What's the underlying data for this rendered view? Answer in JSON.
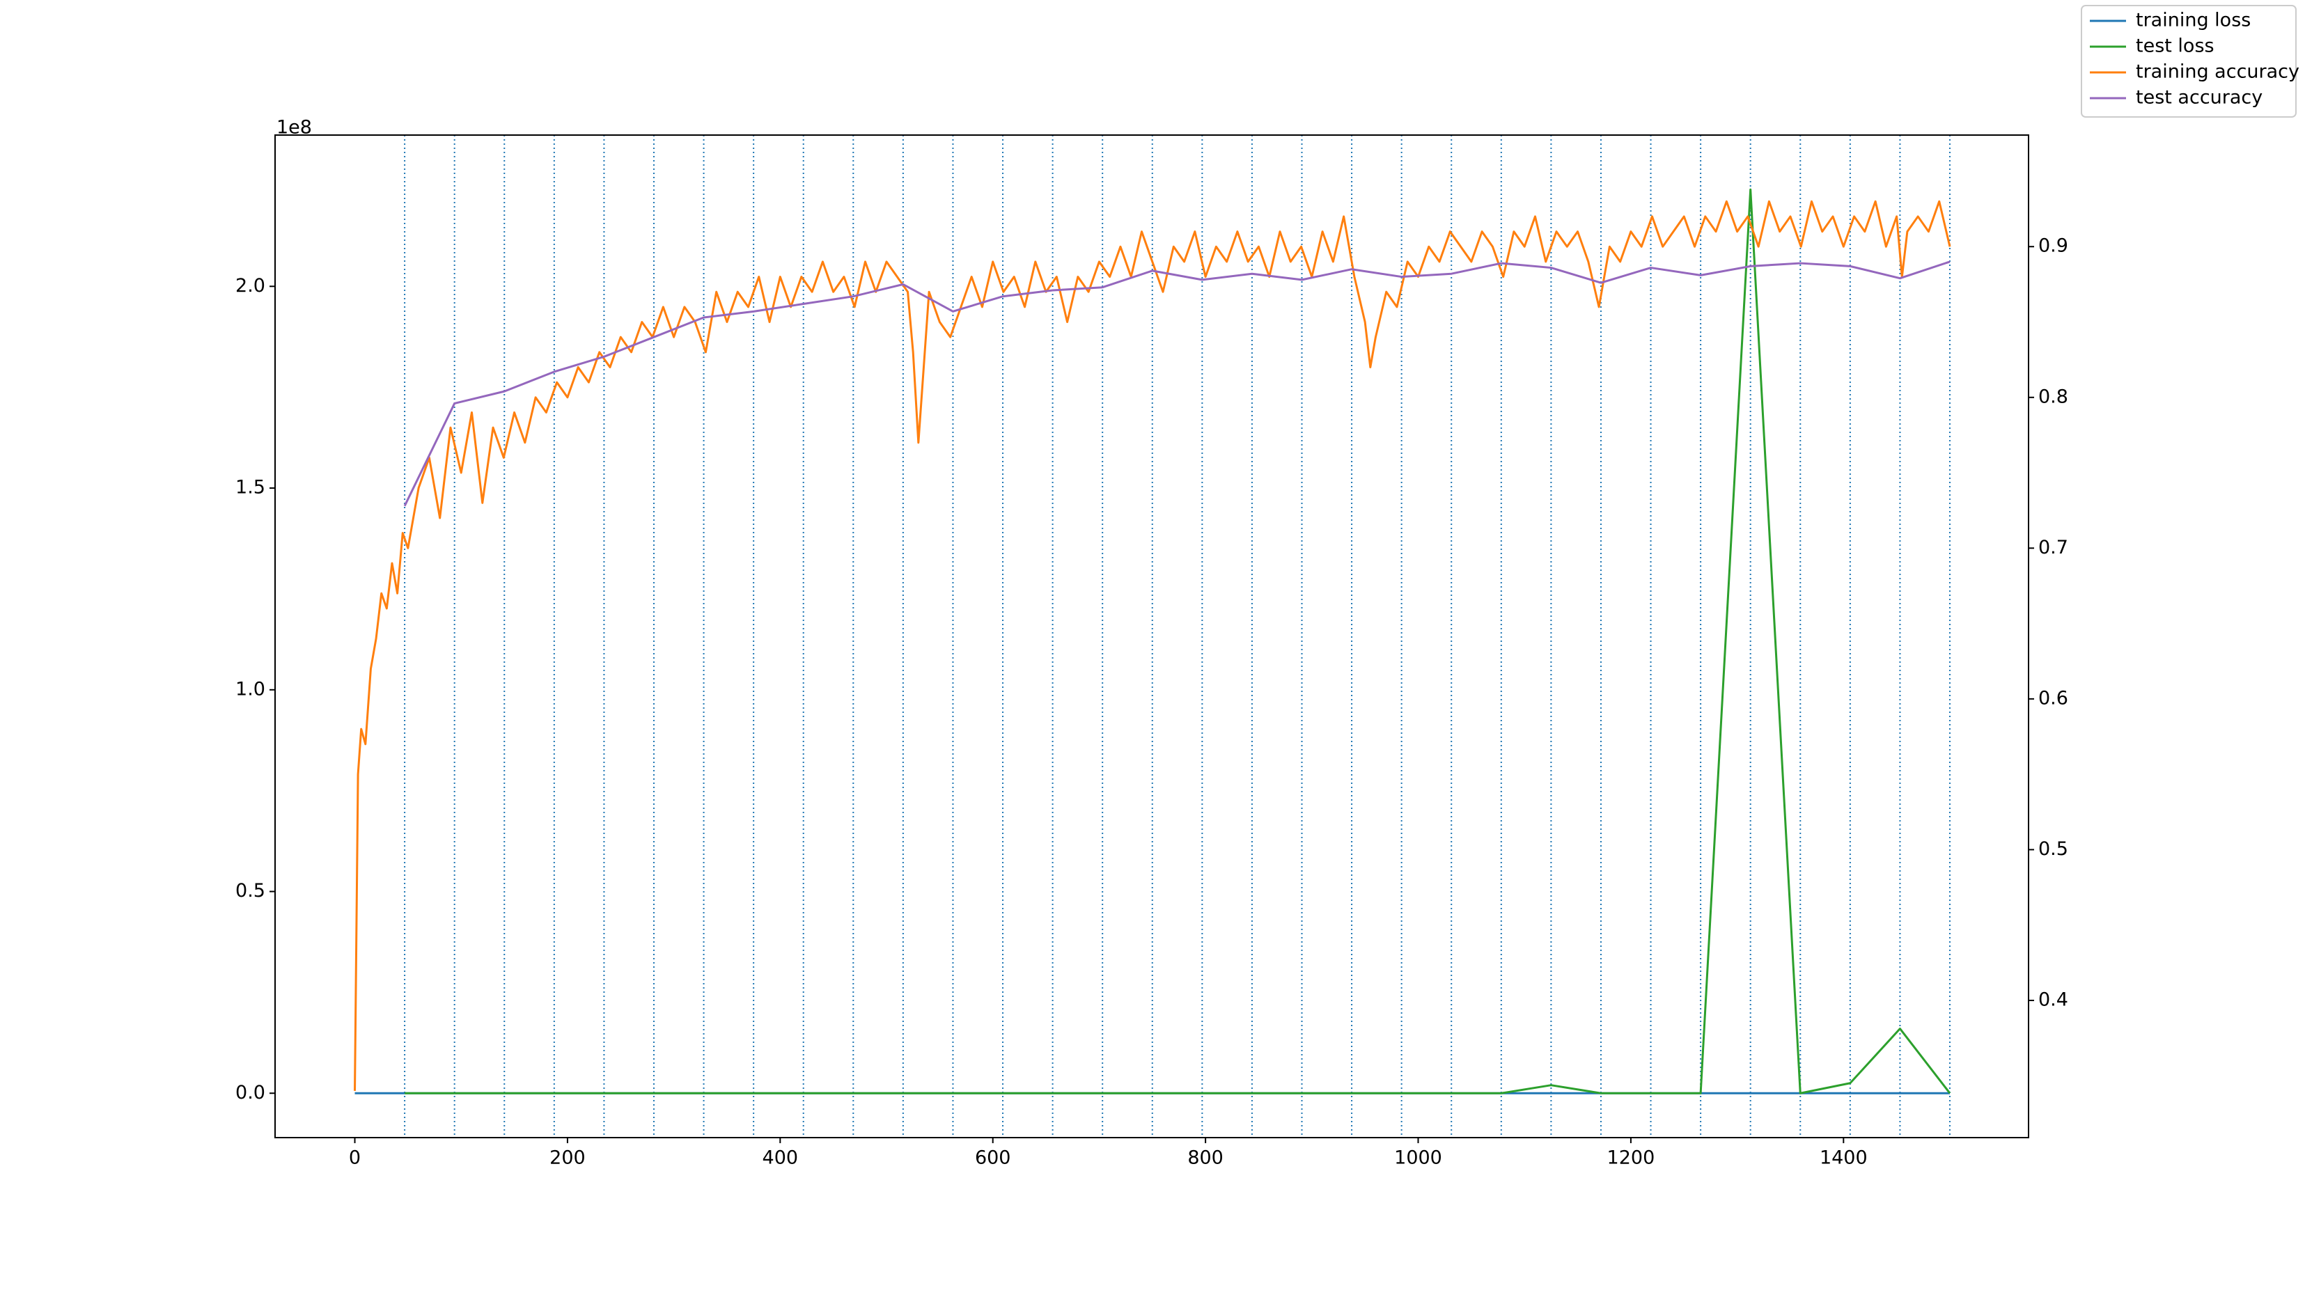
{
  "chart_data": {
    "type": "line",
    "xlim": [
      -75,
      1574
    ],
    "xticks": [
      0,
      200,
      400,
      600,
      800,
      1000,
      1200,
      1400
    ],
    "ylim": [
      -0.11,
      2.375
    ],
    "yticks": [
      {
        "value": 0,
        "label": "0.0"
      },
      {
        "value": 0.5,
        "label": "0.5"
      },
      {
        "value": 1,
        "label": "1.0"
      },
      {
        "value": 1.5,
        "label": "1.5"
      },
      {
        "value": 2,
        "label": "2.0"
      }
    ],
    "y_offset_label": "1e8",
    "y2lim": [
      0.309,
      0.974
    ],
    "y2ticks": [
      0.4,
      0.5,
      0.6,
      0.7,
      0.8,
      0.9
    ],
    "legend": "upper right",
    "vline_color": "#1f77b4",
    "vlines": [
      46.875,
      93.75,
      140.625,
      187.5,
      234.375,
      281.25,
      328.125,
      375,
      421.875,
      468.75,
      515.625,
      562.5,
      609.375,
      656.25,
      703.125,
      750,
      796.875,
      843.75,
      890.625,
      937.5,
      984.375,
      1031.25,
      1078.125,
      1125,
      1171.875,
      1218.75,
      1265.625,
      1312.5,
      1359.375,
      1406.25,
      1453.125,
      1500
    ],
    "series": [
      {
        "name": "training loss",
        "color": "#1f77b4",
        "x": [
          0,
          1500
        ],
        "values": [
          0,
          0
        ]
      },
      {
        "name": "test loss",
        "color": "#2ca02c",
        "x": [
          46.875,
          93.75,
          140.625,
          187.5,
          234.375,
          281.25,
          328.125,
          375,
          421.875,
          468.75,
          515.625,
          562.5,
          609.375,
          656.25,
          703.125,
          750,
          796.875,
          843.75,
          890.625,
          937.5,
          984.375,
          1031.25,
          1078.125,
          1125,
          1171.875,
          1218.75,
          1265.625,
          1312.5,
          1359.375,
          1406.25,
          1453.125,
          1500
        ],
        "values": [
          0,
          0,
          0,
          0,
          0,
          0,
          0,
          0,
          0,
          0,
          0,
          0,
          0,
          0,
          0,
          0,
          0,
          0,
          0,
          0,
          0,
          0,
          0,
          0.02,
          0,
          0,
          0,
          2.24,
          0,
          0.025,
          0.16,
          0
        ]
      },
      {
        "name": "training accuracy",
        "color": "#ff7f0e",
        "axis": "y2",
        "x": [
          0,
          3,
          6,
          10,
          15,
          20,
          25,
          30,
          35,
          40,
          45,
          50,
          60,
          70,
          80,
          90,
          100,
          110,
          120,
          130,
          140,
          150,
          160,
          170,
          180,
          190,
          200,
          210,
          220,
          230,
          240,
          250,
          260,
          270,
          280,
          290,
          300,
          310,
          320,
          330,
          340,
          350,
          360,
          370,
          380,
          390,
          400,
          410,
          420,
          430,
          440,
          450,
          460,
          470,
          480,
          490,
          500,
          510,
          520,
          525,
          530,
          535,
          540,
          550,
          560,
          570,
          580,
          590,
          600,
          610,
          620,
          630,
          640,
          650,
          660,
          670,
          680,
          690,
          700,
          710,
          720,
          730,
          740,
          750,
          760,
          770,
          780,
          790,
          800,
          810,
          820,
          830,
          840,
          850,
          860,
          870,
          880,
          890,
          900,
          910,
          920,
          930,
          940,
          950,
          955,
          960,
          970,
          980,
          990,
          1000,
          1010,
          1020,
          1030,
          1040,
          1050,
          1060,
          1070,
          1080,
          1090,
          1100,
          1110,
          1120,
          1130,
          1140,
          1150,
          1160,
          1170,
          1180,
          1190,
          1200,
          1210,
          1220,
          1230,
          1240,
          1250,
          1260,
          1270,
          1280,
          1290,
          1300,
          1310,
          1320,
          1330,
          1340,
          1350,
          1360,
          1370,
          1380,
          1390,
          1400,
          1410,
          1420,
          1430,
          1440,
          1450,
          1455,
          1460,
          1470,
          1480,
          1490,
          1500
        ],
        "values": [
          0.34,
          0.55,
          0.58,
          0.57,
          0.62,
          0.64,
          0.67,
          0.66,
          0.69,
          0.67,
          0.71,
          0.7,
          0.74,
          0.76,
          0.72,
          0.78,
          0.75,
          0.79,
          0.73,
          0.78,
          0.76,
          0.79,
          0.77,
          0.8,
          0.79,
          0.81,
          0.8,
          0.82,
          0.81,
          0.83,
          0.82,
          0.84,
          0.83,
          0.85,
          0.84,
          0.86,
          0.84,
          0.86,
          0.85,
          0.83,
          0.87,
          0.85,
          0.87,
          0.86,
          0.88,
          0.85,
          0.88,
          0.86,
          0.88,
          0.87,
          0.89,
          0.87,
          0.88,
          0.86,
          0.89,
          0.87,
          0.89,
          0.88,
          0.87,
          0.83,
          0.77,
          0.82,
          0.87,
          0.85,
          0.84,
          0.86,
          0.88,
          0.86,
          0.89,
          0.87,
          0.88,
          0.86,
          0.89,
          0.87,
          0.88,
          0.85,
          0.88,
          0.87,
          0.89,
          0.88,
          0.9,
          0.88,
          0.91,
          0.89,
          0.87,
          0.9,
          0.89,
          0.91,
          0.88,
          0.9,
          0.89,
          0.91,
          0.89,
          0.9,
          0.88,
          0.91,
          0.89,
          0.9,
          0.88,
          0.91,
          0.89,
          0.92,
          0.88,
          0.85,
          0.82,
          0.84,
          0.87,
          0.86,
          0.89,
          0.88,
          0.9,
          0.89,
          0.91,
          0.9,
          0.89,
          0.91,
          0.9,
          0.88,
          0.91,
          0.9,
          0.92,
          0.89,
          0.91,
          0.9,
          0.91,
          0.89,
          0.86,
          0.9,
          0.89,
          0.91,
          0.9,
          0.92,
          0.9,
          0.91,
          0.92,
          0.9,
          0.92,
          0.91,
          0.93,
          0.91,
          0.92,
          0.9,
          0.93,
          0.91,
          0.92,
          0.9,
          0.93,
          0.91,
          0.92,
          0.9,
          0.92,
          0.91,
          0.93,
          0.9,
          0.92,
          0.88,
          0.91,
          0.92,
          0.91,
          0.93,
          0.9
        ]
      },
      {
        "name": "test accuracy",
        "color": "#9467bd",
        "axis": "y2",
        "x": [
          46.875,
          93.75,
          140.625,
          187.5,
          234.375,
          281.25,
          328.125,
          375,
          421.875,
          468.75,
          515.625,
          562.5,
          609.375,
          656.25,
          703.125,
          750,
          796.875,
          843.75,
          890.625,
          937.5,
          984.375,
          1031.25,
          1078.125,
          1125,
          1171.875,
          1218.75,
          1265.625,
          1312.5,
          1359.375,
          1406.25,
          1453.125,
          1500
        ],
        "values": [
          0.728,
          0.796,
          0.804,
          0.817,
          0.827,
          0.84,
          0.853,
          0.857,
          0.862,
          0.867,
          0.875,
          0.857,
          0.867,
          0.871,
          0.873,
          0.884,
          0.878,
          0.882,
          0.878,
          0.885,
          0.88,
          0.882,
          0.889,
          0.886,
          0.876,
          0.886,
          0.881,
          0.887,
          0.889,
          0.887,
          0.879,
          0.89
        ]
      }
    ]
  }
}
